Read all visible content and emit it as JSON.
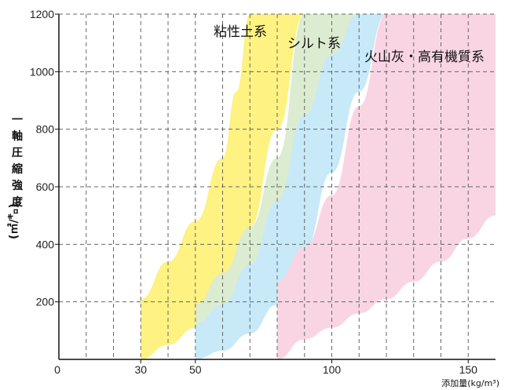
{
  "chart_data": {
    "type": "area",
    "xlabel": "添加量(kg/m³)",
    "ylabel": "一軸圧縮強度(㎡/㌔)",
    "xlim": [
      0,
      160
    ],
    "ylim": [
      0,
      1200
    ],
    "x_ticks": [
      {
        "value": 0,
        "label": "0"
      },
      {
        "value": 30,
        "label": "30"
      },
      {
        "value": 50,
        "label": "50"
      },
      {
        "value": 100,
        "label": "100"
      },
      {
        "value": 150,
        "label": "150"
      }
    ],
    "y_ticks": [
      {
        "value": 200,
        "label": "200"
      },
      {
        "value": 400,
        "label": "400"
      },
      {
        "value": 600,
        "label": "600"
      },
      {
        "value": 800,
        "label": "800"
      },
      {
        "value": 1000,
        "label": "1000"
      },
      {
        "value": 1200,
        "label": "1200"
      }
    ],
    "grid_x": [
      10,
      20,
      30,
      40,
      50,
      60,
      70,
      80,
      90,
      100,
      110,
      120,
      130,
      140,
      150
    ],
    "grid_y": [
      200,
      400,
      600,
      800,
      1000
    ],
    "series": [
      {
        "name": "粘性土系",
        "color": "#fdf282",
        "upper": [
          [
            30,
            210
          ],
          [
            40,
            340
          ],
          [
            50,
            480
          ],
          [
            60,
            700
          ],
          [
            65,
            930
          ],
          [
            70,
            1200
          ]
        ],
        "lower": [
          [
            30,
            0
          ],
          [
            40,
            50
          ],
          [
            50,
            110
          ],
          [
            60,
            230
          ],
          [
            70,
            460
          ],
          [
            80,
            800
          ],
          [
            90,
            1200
          ]
        ]
      },
      {
        "name": "シルト系",
        "color": "#dbecd0",
        "upper": [
          [
            50,
            190
          ],
          [
            60,
            300
          ],
          [
            70,
            460
          ],
          [
            80,
            700
          ],
          [
            90,
            1200
          ]
        ],
        "lower": [
          [
            50,
            0
          ],
          [
            60,
            80
          ],
          [
            70,
            170
          ],
          [
            80,
            330
          ],
          [
            90,
            570
          ],
          [
            100,
            900
          ],
          [
            110,
            1200
          ]
        ]
      },
      {
        "name": "",
        "color": "#c7e9f8",
        "upper": [
          [
            50,
            120
          ],
          [
            60,
            190
          ],
          [
            70,
            330
          ],
          [
            80,
            550
          ],
          [
            90,
            850
          ],
          [
            100,
            1060
          ],
          [
            110,
            1200
          ]
        ],
        "lower": [
          [
            50,
            0
          ],
          [
            60,
            30
          ],
          [
            70,
            90
          ],
          [
            80,
            190
          ],
          [
            90,
            380
          ],
          [
            100,
            650
          ],
          [
            110,
            930
          ],
          [
            120,
            1200
          ]
        ]
      },
      {
        "name": "火山灰・高有機質系",
        "color": "#f9d5e4",
        "upper": [
          [
            80,
            270
          ],
          [
            90,
            390
          ],
          [
            100,
            570
          ],
          [
            110,
            880
          ],
          [
            120,
            1200
          ]
        ],
        "lower": [
          [
            80,
            0
          ],
          [
            90,
            70
          ],
          [
            100,
            110
          ],
          [
            110,
            160
          ],
          [
            120,
            210
          ],
          [
            130,
            270
          ],
          [
            140,
            340
          ],
          [
            150,
            420
          ],
          [
            160,
            500
          ]
        ]
      }
    ]
  },
  "labels": {
    "clay": "粘性土系",
    "silt": "シルト系",
    "volcanic": "火山灰・高有機質系",
    "ylabel_line1": "一",
    "ylabel_line2": "軸",
    "ylabel_line3": "圧",
    "ylabel_line4": "縮",
    "ylabel_line5": "強",
    "ylabel_line6": "度",
    "ylabel_line7": "(㎡/㌔)",
    "xlabel": "添加量(kg/m³)"
  }
}
